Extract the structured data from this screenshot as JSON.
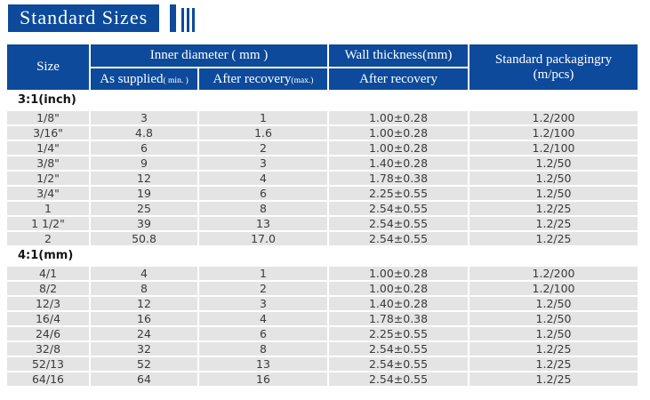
{
  "title": {
    "text": "Standard Sizes"
  },
  "colors": {
    "header_blue": "#0d4a9b",
    "row_gray": "#e4e4e4",
    "header_text": "#ffffff",
    "body_text": "#3a3a3a"
  },
  "table": {
    "column_names": [
      "size",
      "as-supplied",
      "after-recovery",
      "wall-thickness",
      "packaging"
    ],
    "headers": {
      "size": "Size",
      "inner_diameter": "Inner diameter ( mm )",
      "as_supplied": "As supplied",
      "as_supplied_note": "( min. )",
      "after_recovery": "After recovery",
      "after_recovery_note": "(max.)",
      "wall_thickness": "Wall thickness(mm)",
      "wall_after_recovery": "After recovery",
      "packaging_line1": "Standard packagingry",
      "packaging_line2": "(m/pcs)"
    },
    "sections": [
      {
        "label": "3:1(inch)",
        "rows": [
          [
            "1/8\"",
            "3",
            "1",
            "1.00±0.28",
            "1.2/200"
          ],
          [
            "3/16\"",
            "4.8",
            "1.6",
            "1.00±0.28",
            "1.2/100"
          ],
          [
            "1/4\"",
            "6",
            "2",
            "1.00±0.28",
            "1.2/100"
          ],
          [
            "3/8\"",
            "9",
            "3",
            "1.40±0.28",
            "1.2/50"
          ],
          [
            "1/2\"",
            "12",
            "4",
            "1.78±0.38",
            "1.2/50"
          ],
          [
            "3/4\"",
            "19",
            "6",
            "2.25±0.55",
            "1.2/50"
          ],
          [
            "1",
            "25",
            "8",
            "2.54±0.55",
            "1.2/25"
          ],
          [
            "1 1/2\"",
            "39",
            "13",
            "2.54±0.55",
            "1.2/25"
          ],
          [
            "2",
            "50.8",
            "17.0",
            "2.54±0.55",
            "1.2/25"
          ]
        ]
      },
      {
        "label": "4:1(mm)",
        "rows": [
          [
            "4/1",
            "4",
            "1",
            "1.00±0.28",
            "1.2/200"
          ],
          [
            "8/2",
            "8",
            "2",
            "1.00±0.28",
            "1.2/100"
          ],
          [
            "12/3",
            "12",
            "3",
            "1.40±0.28",
            "1.2/50"
          ],
          [
            "16/4",
            "16",
            "4",
            "1.78±0.38",
            "1.2/50"
          ],
          [
            "24/6",
            "24",
            "6",
            "2.25±0.55",
            "1.2/50"
          ],
          [
            "32/8",
            "32",
            "8",
            "2.54±0.55",
            "1.2/25"
          ],
          [
            "52/13",
            "52",
            "13",
            "2.54±0.55",
            "1.2/25"
          ],
          [
            "64/16",
            "64",
            "16",
            "2.54±0.55",
            "1.2/25"
          ]
        ]
      }
    ]
  }
}
